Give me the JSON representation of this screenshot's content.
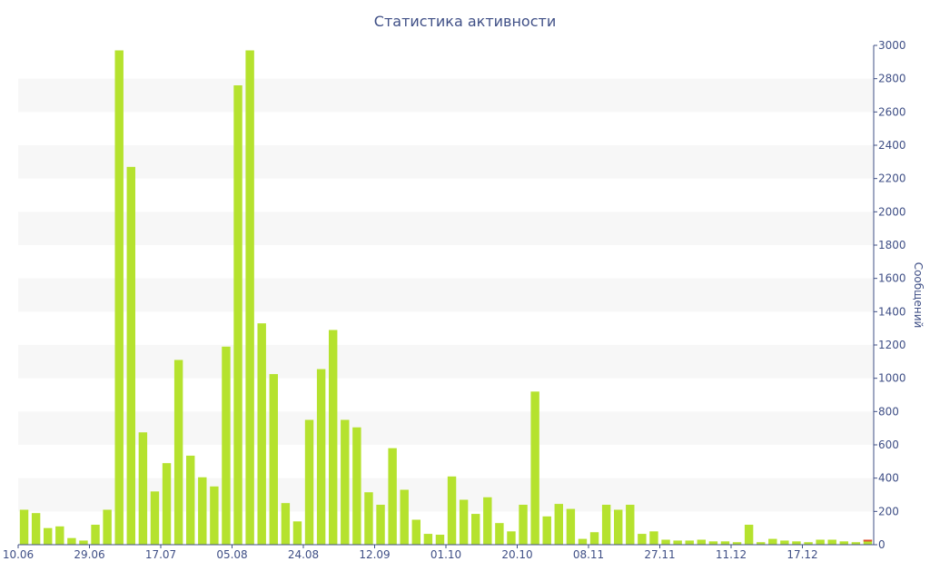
{
  "chart_data": {
    "type": "bar",
    "title": "Статистика активности",
    "xlabel": "",
    "ylabel": "Сообщений",
    "ylim": [
      0,
      3000
    ],
    "y_ticks": [
      0,
      200,
      400,
      600,
      800,
      1000,
      1200,
      1400,
      1600,
      1800,
      2000,
      2200,
      2400,
      2600,
      2800,
      3000
    ],
    "y_axis_side": "right",
    "x_tick_labels": [
      {
        "index": 0,
        "label": "10.06"
      },
      {
        "index": 6,
        "label": "29.06"
      },
      {
        "index": 12,
        "label": "17.07"
      },
      {
        "index": 18,
        "label": "05.08"
      },
      {
        "index": 24,
        "label": "24.08"
      },
      {
        "index": 30,
        "label": "12.09"
      },
      {
        "index": 36,
        "label": "01.10"
      },
      {
        "index": 42,
        "label": "20.10"
      },
      {
        "index": 48,
        "label": "08.11"
      },
      {
        "index": 54,
        "label": "27.11"
      },
      {
        "index": 60,
        "label": "11.12"
      },
      {
        "index": 66,
        "label": "17.12"
      }
    ],
    "values": [
      210,
      190,
      100,
      110,
      40,
      25,
      120,
      210,
      2970,
      2270,
      675,
      320,
      490,
      1110,
      535,
      405,
      350,
      1190,
      2760,
      2970,
      1330,
      1025,
      250,
      140,
      750,
      1055,
      1290,
      750,
      705,
      315,
      240,
      580,
      330,
      150,
      65,
      60,
      410,
      270,
      185,
      285,
      130,
      80,
      240,
      920,
      170,
      245,
      215,
      35,
      75,
      240,
      210,
      240,
      65,
      80,
      30,
      25,
      25,
      30,
      20,
      20,
      15,
      120,
      15,
      35,
      25,
      20,
      15,
      30,
      30,
      20,
      15,
      30
    ],
    "highlight": {
      "index": 71,
      "value": 30,
      "color": "#e04f2f"
    },
    "bar_color": "#b5e22e",
    "band_color": "#f7f7f7",
    "grid": "alternating horizontal bands"
  }
}
